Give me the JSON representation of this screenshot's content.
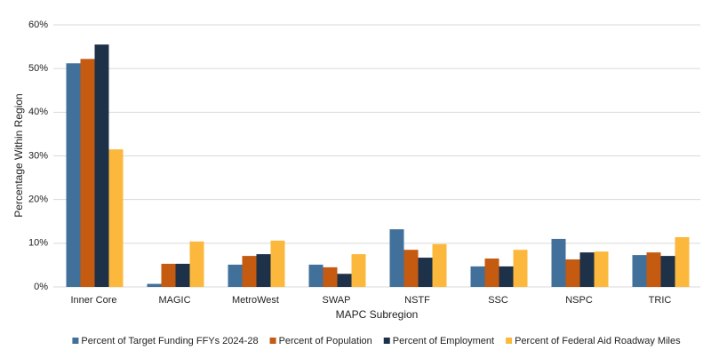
{
  "chart_data": {
    "type": "bar",
    "x_label": "MAPC Subregion",
    "y_label": "Percentage Within Region",
    "categories": [
      "Inner Core",
      "MAGIC",
      "MetroWest",
      "SWAP",
      "NSTF",
      "SSC",
      "NSPC",
      "TRIC"
    ],
    "series": [
      {
        "name": "Percent of Target Funding FFYs 2024-28",
        "color": "#41709a",
        "values": [
          51.2,
          0.7,
          5.1,
          5.1,
          13.2,
          4.7,
          11.0,
          7.3
        ]
      },
      {
        "name": "Percent of Population",
        "color": "#c55a11",
        "values": [
          52.2,
          5.3,
          7.1,
          4.5,
          8.5,
          6.5,
          6.3,
          7.9
        ]
      },
      {
        "name": "Percent of Employment",
        "color": "#1d3149",
        "values": [
          55.5,
          5.3,
          7.5,
          3.0,
          6.7,
          4.7,
          7.9,
          7.1
        ]
      },
      {
        "name": "Percent of Federal Aid Roadway Miles",
        "color": "#fbb83c",
        "values": [
          31.5,
          10.4,
          10.6,
          7.5,
          9.8,
          8.5,
          8.1,
          11.4
        ]
      }
    ],
    "ylim": [
      0,
      60
    ],
    "yticks": [
      {
        "value": 0,
        "label": "0%"
      },
      {
        "value": 10,
        "label": "10%"
      },
      {
        "value": 20,
        "label": "20%"
      },
      {
        "value": 30,
        "label": "30%"
      },
      {
        "value": 40,
        "label": "40%"
      },
      {
        "value": 50,
        "label": "50%"
      },
      {
        "value": 60,
        "label": "60%"
      }
    ],
    "grid": true,
    "legend": "bottom"
  }
}
